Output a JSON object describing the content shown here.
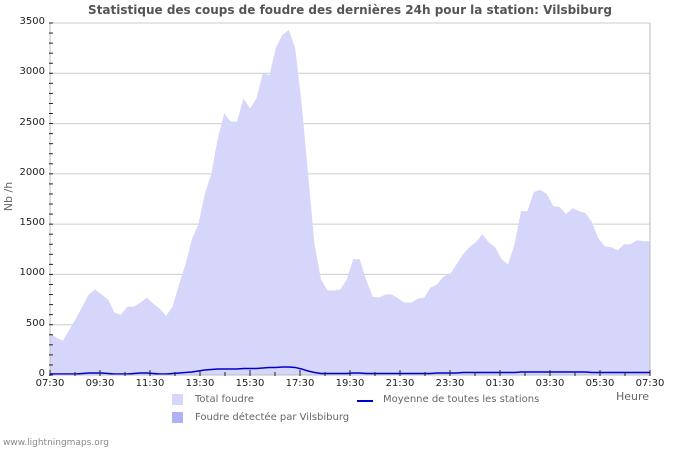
{
  "title": "Statistique des coups de foudre des dernières 24h pour la station: Vilsbiburg",
  "footer": "www.lightningmaps.org",
  "colors": {
    "total_fill": "#d6d6fb",
    "station_fill": "#b0b0f4",
    "average_line": "#0000cc",
    "grid": "#cccccc",
    "axis": "#bbbbbb"
  },
  "chart_data": {
    "type": "area",
    "title": "Statistique des coups de foudre des dernières 24h pour la station: Vilsbiburg",
    "xlabel": "Heure",
    "ylabel": "Nb /h",
    "ylim": [
      0,
      3500
    ],
    "yticks": [
      0,
      500,
      1000,
      1500,
      2000,
      2500,
      3000,
      3500
    ],
    "xticks": [
      "07:30",
      "09:30",
      "11:30",
      "13:30",
      "15:30",
      "17:30",
      "19:30",
      "21:30",
      "23:30",
      "01:30",
      "03:30",
      "05:30",
      "07:30"
    ],
    "grid": true,
    "legend_position": "bottom",
    "legend": [
      "Total foudre",
      "Foudre détectée par Vilsbiburg",
      "Moyenne de toutes les stations"
    ],
    "x_step_minutes": 15,
    "x_start": "07:30",
    "series": [
      {
        "name": "Total foudre",
        "type": "area",
        "values": [
          420,
          370,
          340,
          450,
          560,
          680,
          800,
          850,
          800,
          750,
          620,
          600,
          680,
          680,
          720,
          770,
          710,
          660,
          590,
          680,
          900,
          1100,
          1350,
          1500,
          1800,
          2000,
          2350,
          2600,
          2520,
          2520,
          2750,
          2650,
          2750,
          3000,
          2980,
          3250,
          3380,
          3430,
          3250,
          2700,
          2000,
          1300,
          950,
          840,
          840,
          850,
          950,
          1150,
          1150,
          950,
          780,
          770,
          800,
          800,
          760,
          720,
          720,
          760,
          770,
          870,
          900,
          980,
          1000,
          1100,
          1200,
          1270,
          1320,
          1400,
          1320,
          1270,
          1150,
          1100,
          1300,
          1630,
          1630,
          1820,
          1840,
          1800,
          1680,
          1670,
          1600,
          1660,
          1630,
          1610,
          1520,
          1360,
          1280,
          1270,
          1240,
          1300,
          1300,
          1340,
          1330,
          1330
        ]
      },
      {
        "name": "Foudre détectée par Vilsbiburg",
        "type": "area",
        "values": []
      },
      {
        "name": "Moyenne de toutes les stations",
        "type": "line",
        "values": [
          10,
          10,
          10,
          10,
          10,
          15,
          20,
          20,
          20,
          15,
          10,
          10,
          10,
          15,
          20,
          20,
          15,
          10,
          10,
          15,
          20,
          25,
          30,
          40,
          50,
          55,
          60,
          60,
          60,
          60,
          65,
          65,
          65,
          70,
          75,
          75,
          80,
          80,
          75,
          60,
          40,
          25,
          15,
          15,
          15,
          15,
          15,
          20,
          20,
          15,
          15,
          15,
          15,
          15,
          15,
          15,
          15,
          15,
          15,
          15,
          20,
          20,
          20,
          20,
          25,
          25,
          25,
          25,
          25,
          25,
          25,
          25,
          25,
          30,
          30,
          30,
          30,
          30,
          30,
          30,
          30,
          30,
          30,
          30,
          25,
          25,
          25,
          25,
          25,
          25,
          25,
          25,
          25,
          25
        ]
      }
    ]
  }
}
